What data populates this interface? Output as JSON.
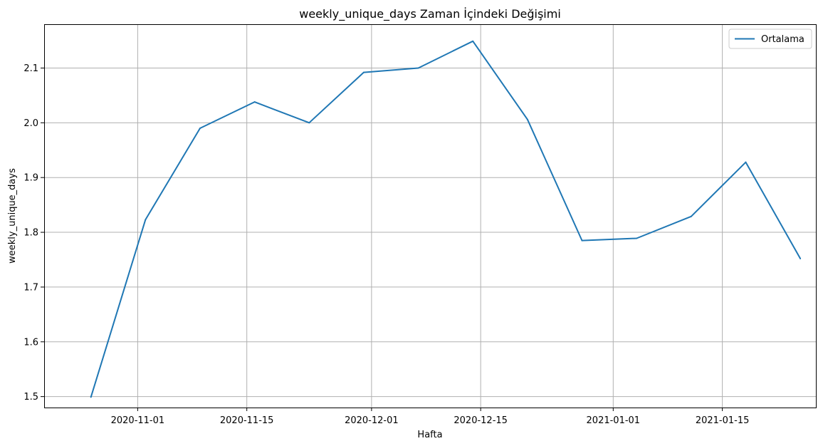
{
  "chart_data": {
    "type": "line",
    "title": "weekly_unique_days Zaman İçindeki Değişimi",
    "xlabel": "Hafta",
    "ylabel": "weekly_unique_days",
    "x_type": "date",
    "xlim": [
      "2020-10-20",
      "2021-01-27"
    ],
    "ylim": [
      1.48,
      2.18
    ],
    "x_ticks": [
      "2020-11-01",
      "2020-11-15",
      "2020-12-01",
      "2020-12-15",
      "2021-01-01",
      "2021-01-15"
    ],
    "y_ticks": [
      1.5,
      1.6,
      1.7,
      1.8,
      1.9,
      2.0,
      2.1
    ],
    "grid": true,
    "legend_position": "top-right",
    "series": [
      {
        "name": "Ortalama",
        "color": "#1f77b4",
        "x": [
          "2020-10-26",
          "2020-11-02",
          "2020-11-09",
          "2020-11-16",
          "2020-11-23",
          "2020-11-30",
          "2020-12-07",
          "2020-12-14",
          "2020-12-21",
          "2020-12-28",
          "2021-01-04",
          "2021-01-11",
          "2021-01-18",
          "2021-01-25"
        ],
        "values": [
          1.499,
          1.823,
          1.99,
          2.038,
          2.0,
          2.092,
          2.1,
          2.149,
          2.006,
          1.785,
          1.789,
          1.829,
          1.928,
          1.752
        ]
      }
    ]
  }
}
